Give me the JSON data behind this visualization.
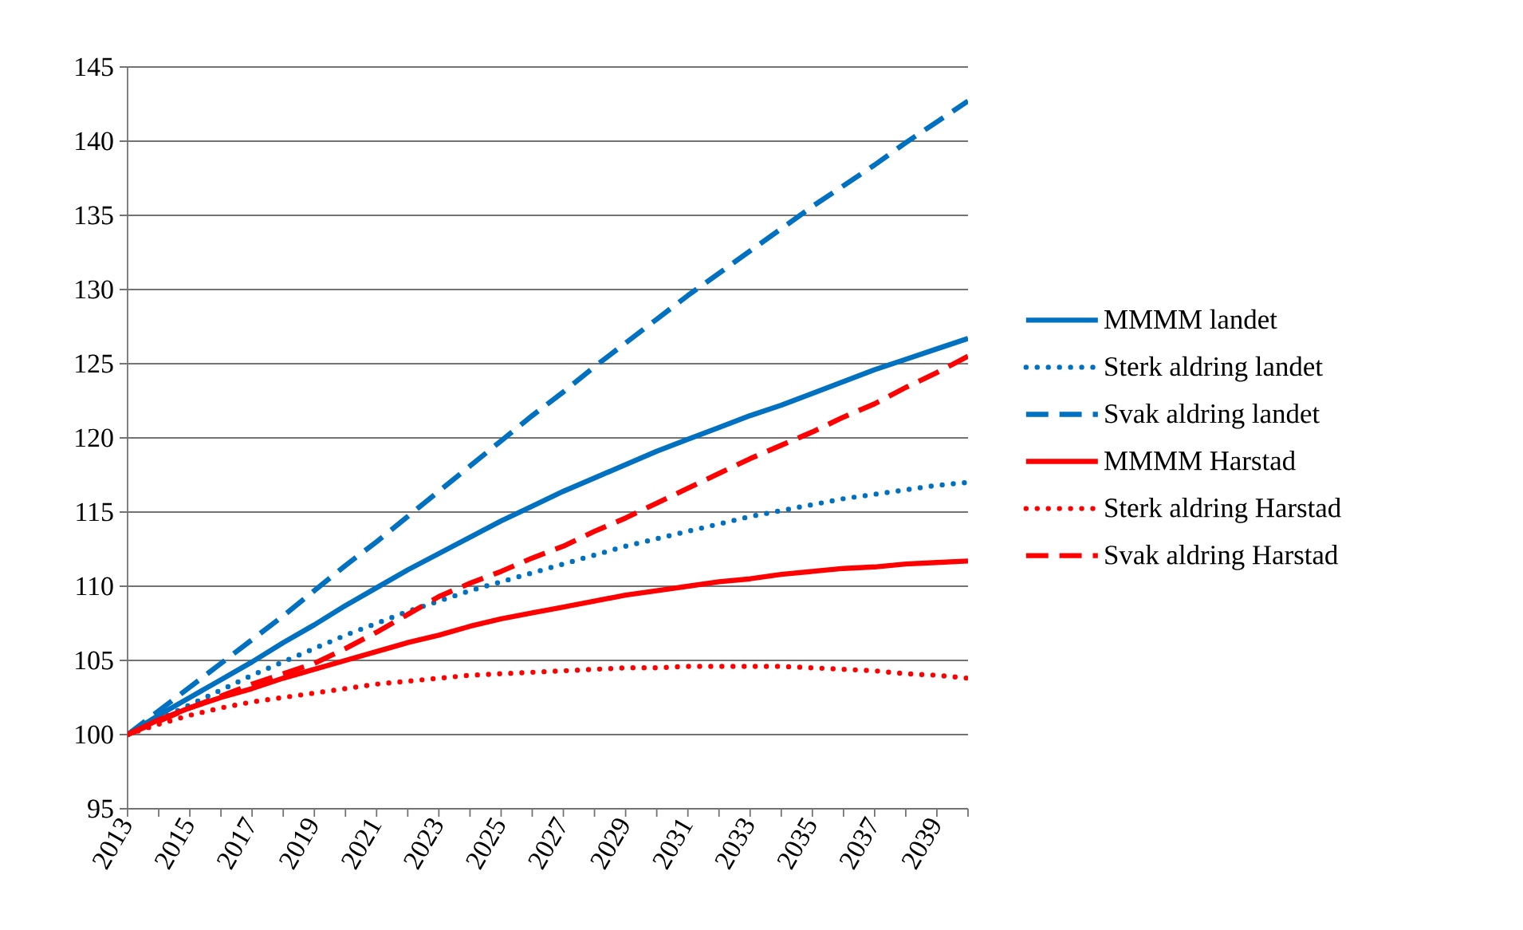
{
  "chart_data": {
    "type": "line",
    "categories": [
      "2013",
      null,
      "2015",
      null,
      "2017",
      null,
      "2019",
      null,
      "2021",
      null,
      "2023",
      null,
      "2025",
      null,
      "2027",
      null,
      "2029",
      null,
      "2031",
      null,
      "2033",
      null,
      "2035",
      null,
      "2037",
      null,
      "2039",
      null
    ],
    "ylim": [
      95,
      145
    ],
    "yticks": [
      95,
      100,
      105,
      110,
      115,
      120,
      125,
      130,
      135,
      140,
      145
    ],
    "grid": "y",
    "legend": "right",
    "marker": "none",
    "series": [
      {
        "name": "MMMM landet",
        "color": "#0070c0",
        "line_style": "solid",
        "values": [
          100,
          101.3,
          102.5,
          103.7,
          104.9,
          106.2,
          107.4,
          108.7,
          109.9,
          111.1,
          112.2,
          113.3,
          114.4,
          115.4,
          116.4,
          117.3,
          118.2,
          119.1,
          119.9,
          120.7,
          121.5,
          122.2,
          123.0,
          123.8,
          124.6,
          125.3,
          126.0,
          126.7
        ]
      },
      {
        "name": "Sterk aldring landet",
        "color": "#0070c0",
        "line_style": "dotted",
        "values": [
          100,
          101.0,
          102.0,
          103.0,
          104.0,
          104.9,
          105.8,
          106.7,
          107.5,
          108.3,
          109.0,
          109.7,
          110.3,
          110.9,
          111.5,
          112.1,
          112.7,
          113.2,
          113.7,
          114.2,
          114.7,
          115.1,
          115.5,
          115.9,
          116.2,
          116.5,
          116.8,
          117.0
        ]
      },
      {
        "name": "Svak aldring landet",
        "color": "#0070c0",
        "line_style": "dashed",
        "values": [
          100,
          101.6,
          103.2,
          104.8,
          106.4,
          108.0,
          109.7,
          111.4,
          113.0,
          114.7,
          116.4,
          118.1,
          119.8,
          121.5,
          123.1,
          124.8,
          126.4,
          128.0,
          129.6,
          131.1,
          132.6,
          134.1,
          135.6,
          137.0,
          138.4,
          139.9,
          141.3,
          142.7
        ]
      },
      {
        "name": "MMMM Harstad",
        "color": "#ff0000",
        "line_style": "solid",
        "values": [
          100,
          101.0,
          101.8,
          102.5,
          103.1,
          103.8,
          104.4,
          105.0,
          105.6,
          106.2,
          106.7,
          107.3,
          107.8,
          108.2,
          108.6,
          109.0,
          109.4,
          109.7,
          110.0,
          110.3,
          110.5,
          110.8,
          111.0,
          111.2,
          111.3,
          111.5,
          111.6,
          111.7
        ]
      },
      {
        "name": "Sterk aldring Harstad",
        "color": "#ff0000",
        "line_style": "dotted",
        "values": [
          100,
          100.7,
          101.3,
          101.8,
          102.2,
          102.5,
          102.8,
          103.1,
          103.4,
          103.6,
          103.8,
          104.0,
          104.1,
          104.2,
          104.3,
          104.4,
          104.5,
          104.5,
          104.6,
          104.6,
          104.6,
          104.6,
          104.5,
          104.4,
          104.3,
          104.1,
          104.0,
          103.8
        ]
      },
      {
        "name": "Svak aldring Harstad",
        "color": "#ff0000",
        "line_style": "dashed",
        "values": [
          100,
          100.9,
          101.8,
          102.6,
          103.4,
          104.1,
          104.8,
          105.8,
          106.9,
          108.1,
          109.3,
          110.2,
          111.0,
          111.9,
          112.7,
          113.7,
          114.6,
          115.6,
          116.6,
          117.6,
          118.6,
          119.5,
          120.4,
          121.4,
          122.3,
          123.4,
          124.4,
          125.5
        ]
      }
    ]
  }
}
